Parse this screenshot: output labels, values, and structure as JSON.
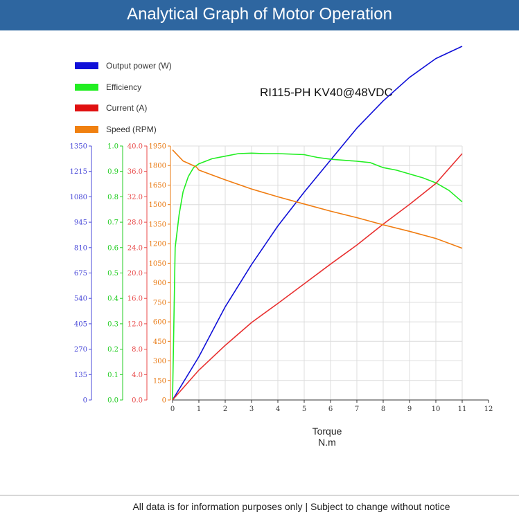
{
  "header": {
    "title": "Analytical Graph of Motor Operation"
  },
  "model": "RI115-PH KV40@48VDC",
  "footer": "All data is for information purposes only | Subject to change without notice",
  "chart_data": {
    "type": "line",
    "xlabel": "Torque",
    "xunit": "N.m",
    "xlim": [
      0,
      12
    ],
    "xticks": [
      "0",
      "1",
      "2",
      "3",
      "4",
      "5",
      "6",
      "7",
      "8",
      "9",
      "10",
      "11",
      "12"
    ],
    "grid": true,
    "legend_position": "top-left",
    "series": [
      {
        "name": "Output power (W)",
        "color": "#1010d8",
        "axis": "power",
        "x": [
          0,
          1,
          2,
          3,
          4,
          5,
          6,
          7,
          8,
          9,
          10,
          11
        ],
        "y": [
          0,
          230,
          495,
          720,
          925,
          1105,
          1275,
          1445,
          1590,
          1715,
          1815,
          1880
        ]
      },
      {
        "name": "Efficiency",
        "color": "#22ee22",
        "axis": "efficiency",
        "x": [
          0,
          0.1,
          0.25,
          0.4,
          0.6,
          0.8,
          1,
          1.5,
          2,
          2.5,
          3,
          3.5,
          4,
          4.5,
          5,
          5.5,
          6,
          6.5,
          7,
          7.5,
          8,
          8.5,
          9,
          9.5,
          10,
          10.5,
          11
        ],
        "y": [
          0,
          0.6,
          0.73,
          0.82,
          0.88,
          0.915,
          0.93,
          0.95,
          0.96,
          0.97,
          0.972,
          0.97,
          0.97,
          0.968,
          0.966,
          0.955,
          0.948,
          0.944,
          0.94,
          0.935,
          0.915,
          0.905,
          0.89,
          0.875,
          0.855,
          0.825,
          0.78
        ]
      },
      {
        "name": "Current (A)",
        "color": "#e83030",
        "axis": "current",
        "x": [
          0,
          1,
          2,
          3,
          4,
          5,
          6,
          7,
          8,
          9,
          10,
          11
        ],
        "y": [
          0,
          4.7,
          8.6,
          12.2,
          15.2,
          18.3,
          21.4,
          24.4,
          27.7,
          30.8,
          34.1,
          38.8
        ]
      },
      {
        "name": "Speed (RPM)",
        "color": "#f07c10",
        "axis": "speed",
        "x": [
          0,
          0.4,
          0.9,
          1,
          2,
          3,
          4,
          5,
          6,
          7,
          8,
          9,
          10,
          11
        ],
        "y": [
          1920,
          1835,
          1790,
          1765,
          1690,
          1620,
          1560,
          1505,
          1450,
          1400,
          1345,
          1295,
          1240,
          1165
        ]
      }
    ],
    "axes": {
      "power": {
        "color": "#4848d8",
        "ylim": [
          0,
          1350
        ],
        "ticks": [
          "0",
          "135",
          "270",
          "405",
          "540",
          "675",
          "810",
          "945",
          "1080",
          "1215",
          "1350"
        ]
      },
      "efficiency": {
        "color": "#20cc20",
        "ylim": [
          0,
          1
        ],
        "ticks": [
          "0.0",
          "0.1",
          "0.2",
          "0.3",
          "0.4",
          "0.5",
          "0.6",
          "0.7",
          "0.8",
          "0.9",
          "1.0"
        ]
      },
      "current": {
        "color": "#e84848",
        "ylim": [
          0,
          40
        ],
        "ticks": [
          "0.0",
          "4.0",
          "8.0",
          "12.0",
          "16.0",
          "20.0",
          "24.0",
          "28.0",
          "32.0",
          "36.0",
          "40.0"
        ]
      },
      "speed": {
        "color": "#e87810",
        "ylim": [
          0,
          1950
        ],
        "ticks": [
          "0",
          "150",
          "300",
          "450",
          "600",
          "750",
          "900",
          "1050",
          "1200",
          "1350",
          "1500",
          "1650",
          "1800",
          "1950"
        ]
      }
    }
  }
}
